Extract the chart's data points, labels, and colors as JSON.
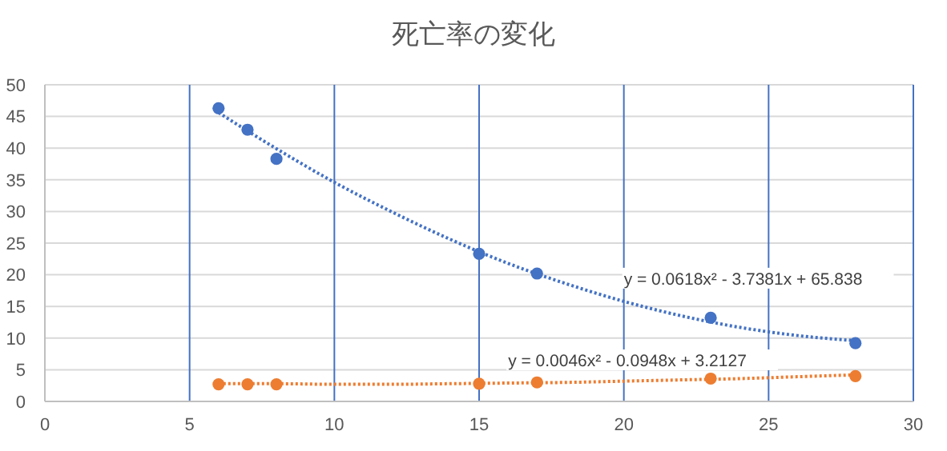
{
  "chart_data": {
    "type": "scatter",
    "title": "死亡率の変化",
    "xlim": [
      0,
      30
    ],
    "xticks": [
      0,
      5,
      10,
      15,
      20,
      25,
      30
    ],
    "ylim": [
      0,
      50
    ],
    "yticks": [
      0,
      5,
      10,
      15,
      20,
      25,
      30,
      35,
      40,
      45,
      50
    ],
    "grid": true,
    "marker": "circle",
    "series": [
      {
        "color": "#4472c4",
        "x": [
          6,
          7,
          8,
          15,
          17,
          23,
          28
        ],
        "values": [
          46.3,
          42.9,
          38.3,
          23.3,
          20.2,
          13.2,
          9.2
        ]
      },
      {
        "color": "#ed7d31",
        "x": [
          6,
          7,
          8,
          15,
          17,
          23,
          28
        ],
        "values": [
          2.7,
          2.7,
          2.7,
          2.8,
          3.0,
          3.6,
          4.0
        ]
      },
      {
        "type": "line",
        "color": "#4472c4",
        "marker": "none",
        "line_style": "dotted",
        "x": [
          6,
          8,
          10,
          12,
          14,
          16,
          18,
          20,
          22,
          24,
          26,
          28
        ],
        "values": [
          45.6,
          39.9,
          34.6,
          29.9,
          25.6,
          21.8,
          18.6,
          15.8,
          13.5,
          11.7,
          10.4,
          9.6
        ]
      },
      {
        "type": "line",
        "color": "#ed7d31",
        "marker": "none",
        "line_style": "dotted",
        "x": [
          6,
          8,
          10,
          12,
          14,
          16,
          18,
          20,
          22,
          24,
          26,
          28
        ],
        "values": [
          2.8,
          2.8,
          2.7,
          2.7,
          2.8,
          2.9,
          3.0,
          3.2,
          3.4,
          3.6,
          3.9,
          4.2
        ]
      }
    ],
    "annotations": [
      {
        "text": "y = 0.0618x² - 3.7381x + 65.838",
        "x": 20,
        "y": 15.8
      },
      {
        "text": "y = 0.0046x² - 0.0948x + 3.2127",
        "x": 16,
        "y": 2.9
      }
    ]
  }
}
